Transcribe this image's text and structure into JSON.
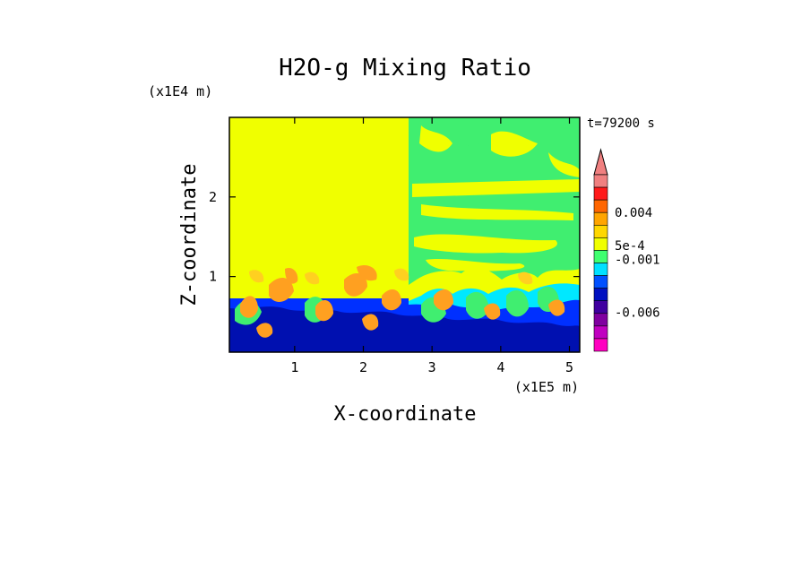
{
  "chart_data": {
    "type": "heatmap",
    "title": "H2O-g Mixing Ratio",
    "xlabel": "X-coordinate",
    "ylabel": "Z-coordinate",
    "x_unit": "(x1E5 m)",
    "y_unit": "(x1E4 m)",
    "time_label": "t=79200 s",
    "xlim": [
      0.05,
      5.15
    ],
    "ylim": [
      0.05,
      3.0
    ],
    "x_ticks": [
      {
        "value": 1,
        "label": "1"
      },
      {
        "value": 2,
        "label": "2"
      },
      {
        "value": 3,
        "label": "3"
      },
      {
        "value": 4,
        "label": "4"
      },
      {
        "value": 5,
        "label": "5"
      }
    ],
    "y_ticks": [
      {
        "value": 1,
        "label": "1"
      },
      {
        "value": 2,
        "label": "2"
      }
    ],
    "colorbar": {
      "labels": [
        {
          "level": 0.004,
          "label": "0.004"
        },
        {
          "level": 0.0005,
          "label": "5e-4"
        },
        {
          "level": -0.001,
          "label": "-0.001"
        },
        {
          "level": -0.006,
          "label": "-0.006"
        }
      ],
      "colors_top_to_bottom": [
        "#f08080",
        "#ff1a1a",
        "#ff6600",
        "#ffa500",
        "#ffd700",
        "#f0ff00",
        "#40ff70",
        "#00e0ff",
        "#0050ff",
        "#0010c0",
        "#4000a0",
        "#8000a0",
        "#c000c0",
        "#ff00c0"
      ]
    },
    "colors": {
      "yellow": "#f0ff00",
      "green": "#40ee70",
      "cyan": "#00e8ff",
      "blue": "#0030ff",
      "navy": "#0010b0",
      "orange": "#ffa020",
      "gold": "#ffd020"
    }
  }
}
